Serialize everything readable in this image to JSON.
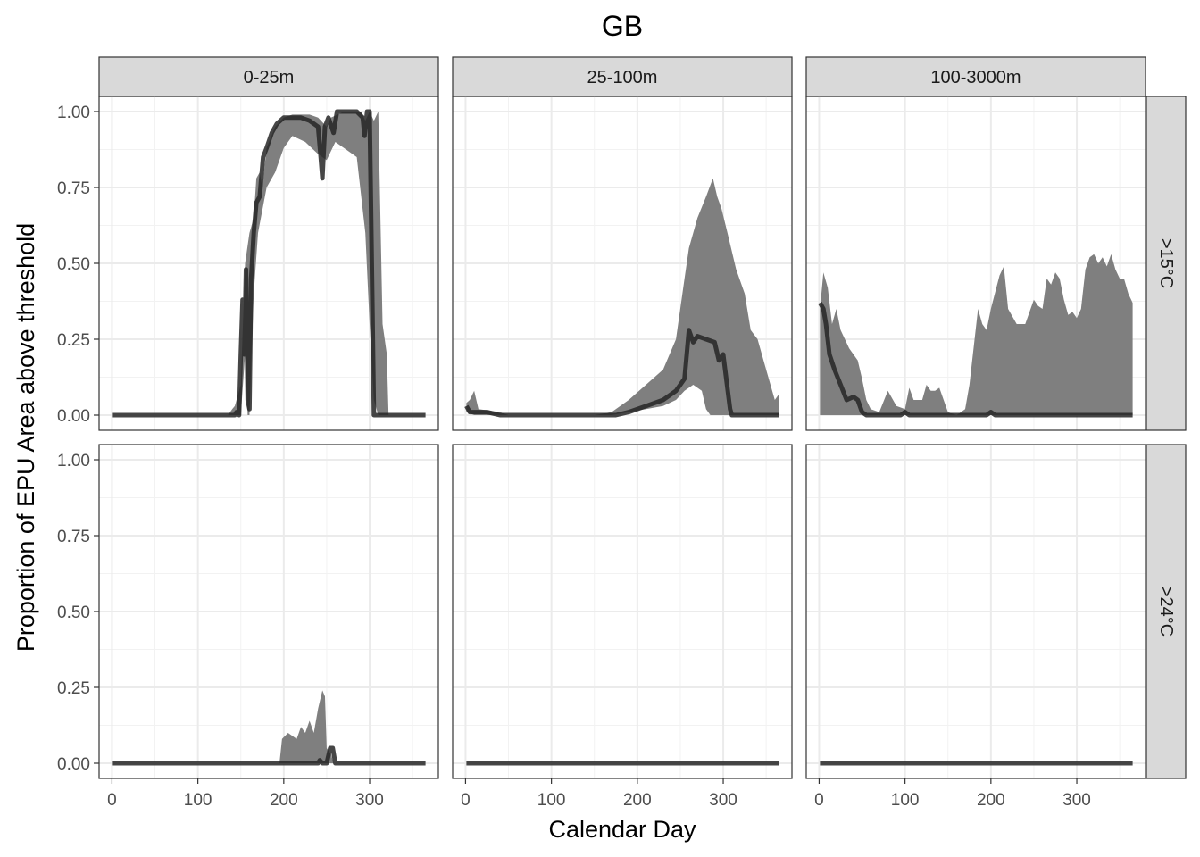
{
  "chart_data": {
    "type": "area",
    "title": "GB",
    "xlabel": "Calendar Day",
    "ylabel": "Proportion of EPU Area above threshold",
    "xlim": [
      -15,
      380
    ],
    "ylim": [
      -0.05,
      1.05
    ],
    "xticks": [
      0,
      100,
      200,
      300
    ],
    "yticks": [
      0,
      0.25,
      0.5,
      0.75,
      1
    ],
    "ytick_labels": [
      "0.00",
      "0.25",
      "0.50",
      "0.75",
      "1.00"
    ],
    "xtick_labels": [
      "0",
      "100",
      "200",
      "300"
    ],
    "grid": true,
    "column_facets": [
      "0-25m",
      "25-100m",
      "100-3000m"
    ],
    "row_facets": [
      ">15°C",
      ">24°C"
    ],
    "panels": [
      {
        "col": 0,
        "row": 0,
        "band_upper": [
          [
            1,
            0
          ],
          [
            135,
            0
          ],
          [
            140,
            0.02
          ],
          [
            143,
            0.03
          ],
          [
            150,
            0.1
          ],
          [
            155,
            0.5
          ],
          [
            160,
            0.6
          ],
          [
            165,
            0.65
          ],
          [
            168,
            0.78
          ],
          [
            172,
            0.8
          ],
          [
            175,
            0.75
          ],
          [
            180,
            0.88
          ],
          [
            190,
            0.95
          ],
          [
            200,
            0.98
          ],
          [
            210,
            0.99
          ],
          [
            230,
            0.99
          ],
          [
            240,
            0.98
          ],
          [
            250,
            0.95
          ],
          [
            255,
            0.98
          ],
          [
            270,
            1.0
          ],
          [
            290,
            1.0
          ],
          [
            295,
            0.97
          ],
          [
            300,
            1.0
          ],
          [
            305,
            0.97
          ],
          [
            310,
            1.0
          ],
          [
            315,
            0.3
          ],
          [
            320,
            0.2
          ],
          [
            322,
            0
          ],
          [
            365,
            0
          ]
        ],
        "band_lower": [
          [
            1,
            0
          ],
          [
            140,
            0
          ],
          [
            150,
            0
          ],
          [
            155,
            0.2
          ],
          [
            158,
            0
          ],
          [
            160,
            0
          ],
          [
            165,
            0.4
          ],
          [
            170,
            0.6
          ],
          [
            180,
            0.75
          ],
          [
            190,
            0.8
          ],
          [
            200,
            0.88
          ],
          [
            210,
            0.92
          ],
          [
            225,
            0.9
          ],
          [
            240,
            0.86
          ],
          [
            250,
            0.84
          ],
          [
            260,
            0.9
          ],
          [
            270,
            0.88
          ],
          [
            285,
            0.85
          ],
          [
            295,
            0.6
          ],
          [
            300,
            0.3
          ],
          [
            305,
            0.05
          ],
          [
            310,
            0
          ],
          [
            365,
            0
          ]
        ],
        "median": [
          [
            1,
            0
          ],
          [
            143,
            0
          ],
          [
            145,
            0.01
          ],
          [
            148,
            0
          ],
          [
            150,
            0.2
          ],
          [
            152,
            0.38
          ],
          [
            154,
            0.2
          ],
          [
            156,
            0.48
          ],
          [
            158,
            0.05
          ],
          [
            160,
            0.02
          ],
          [
            162,
            0.45
          ],
          [
            165,
            0.6
          ],
          [
            168,
            0.7
          ],
          [
            172,
            0.72
          ],
          [
            176,
            0.85
          ],
          [
            180,
            0.88
          ],
          [
            186,
            0.93
          ],
          [
            192,
            0.96
          ],
          [
            200,
            0.98
          ],
          [
            220,
            0.98
          ],
          [
            230,
            0.97
          ],
          [
            240,
            0.95
          ],
          [
            243,
            0.85
          ],
          [
            245,
            0.78
          ],
          [
            248,
            0.95
          ],
          [
            252,
            0.98
          ],
          [
            258,
            0.93
          ],
          [
            262,
            1.0
          ],
          [
            285,
            1.0
          ],
          [
            292,
            0.98
          ],
          [
            294,
            0.92
          ],
          [
            297,
            1.0
          ],
          [
            300,
            1.0
          ],
          [
            303,
            0.4
          ],
          [
            305,
            0
          ],
          [
            365,
            0
          ]
        ]
      },
      {
        "col": 1,
        "row": 0,
        "band_upper": [
          [
            1,
            0.04
          ],
          [
            5,
            0.05
          ],
          [
            10,
            0.08
          ],
          [
            15,
            0.02
          ],
          [
            40,
            0.01
          ],
          [
            50,
            0
          ],
          [
            150,
            0
          ],
          [
            170,
            0.01
          ],
          [
            190,
            0.05
          ],
          [
            210,
            0.1
          ],
          [
            230,
            0.15
          ],
          [
            245,
            0.25
          ],
          [
            255,
            0.45
          ],
          [
            260,
            0.55
          ],
          [
            270,
            0.65
          ],
          [
            280,
            0.72
          ],
          [
            288,
            0.78
          ],
          [
            293,
            0.72
          ],
          [
            298,
            0.68
          ],
          [
            305,
            0.6
          ],
          [
            315,
            0.48
          ],
          [
            325,
            0.4
          ],
          [
            332,
            0.28
          ],
          [
            340,
            0.25
          ],
          [
            350,
            0.15
          ],
          [
            360,
            0.05
          ],
          [
            365,
            0.07
          ]
        ],
        "band_lower": [
          [
            1,
            0.01
          ],
          [
            10,
            0
          ],
          [
            150,
            0
          ],
          [
            170,
            0
          ],
          [
            190,
            0.01
          ],
          [
            210,
            0.02
          ],
          [
            230,
            0.03
          ],
          [
            245,
            0.05
          ],
          [
            255,
            0.08
          ],
          [
            265,
            0.1
          ],
          [
            275,
            0.08
          ],
          [
            280,
            0.02
          ],
          [
            285,
            0
          ],
          [
            365,
            0
          ]
        ],
        "median": [
          [
            1,
            0.03
          ],
          [
            5,
            0.01
          ],
          [
            15,
            0.01
          ],
          [
            25,
            0.01
          ],
          [
            40,
            0
          ],
          [
            175,
            0
          ],
          [
            190,
            0.01
          ],
          [
            210,
            0.03
          ],
          [
            230,
            0.05
          ],
          [
            245,
            0.08
          ],
          [
            255,
            0.12
          ],
          [
            260,
            0.28
          ],
          [
            265,
            0.24
          ],
          [
            270,
            0.26
          ],
          [
            280,
            0.25
          ],
          [
            290,
            0.24
          ],
          [
            295,
            0.18
          ],
          [
            300,
            0.2
          ],
          [
            308,
            0.02
          ],
          [
            310,
            0
          ],
          [
            365,
            0
          ]
        ]
      },
      {
        "col": 2,
        "row": 0,
        "band_upper": [
          [
            1,
            0.35
          ],
          [
            5,
            0.47
          ],
          [
            10,
            0.42
          ],
          [
            15,
            0.3
          ],
          [
            20,
            0.35
          ],
          [
            25,
            0.28
          ],
          [
            30,
            0.25
          ],
          [
            35,
            0.22
          ],
          [
            40,
            0.2
          ],
          [
            45,
            0.18
          ],
          [
            50,
            0.12
          ],
          [
            55,
            0.05
          ],
          [
            60,
            0.02
          ],
          [
            70,
            0.01
          ],
          [
            80,
            0.08
          ],
          [
            90,
            0.03
          ],
          [
            100,
            0.02
          ],
          [
            105,
            0.09
          ],
          [
            110,
            0.05
          ],
          [
            120,
            0.05
          ],
          [
            125,
            0.1
          ],
          [
            130,
            0.08
          ],
          [
            135,
            0.08
          ],
          [
            140,
            0.09
          ],
          [
            145,
            0.05
          ],
          [
            150,
            0.01
          ],
          [
            160,
            0
          ],
          [
            170,
            0.02
          ],
          [
            175,
            0.1
          ],
          [
            185,
            0.35
          ],
          [
            190,
            0.3
          ],
          [
            195,
            0.28
          ],
          [
            200,
            0.35
          ],
          [
            210,
            0.46
          ],
          [
            215,
            0.49
          ],
          [
            220,
            0.35
          ],
          [
            230,
            0.3
          ],
          [
            240,
            0.3
          ],
          [
            250,
            0.38
          ],
          [
            255,
            0.36
          ],
          [
            260,
            0.35
          ],
          [
            265,
            0.45
          ],
          [
            270,
            0.43
          ],
          [
            275,
            0.47
          ],
          [
            280,
            0.45
          ],
          [
            285,
            0.38
          ],
          [
            290,
            0.33
          ],
          [
            295,
            0.34
          ],
          [
            300,
            0.32
          ],
          [
            305,
            0.35
          ],
          [
            310,
            0.48
          ],
          [
            315,
            0.52
          ],
          [
            320,
            0.53
          ],
          [
            325,
            0.5
          ],
          [
            330,
            0.52
          ],
          [
            335,
            0.49
          ],
          [
            340,
            0.53
          ],
          [
            345,
            0.48
          ],
          [
            350,
            0.45
          ],
          [
            355,
            0.45
          ],
          [
            360,
            0.4
          ],
          [
            365,
            0.37
          ]
        ],
        "band_lower": [
          [
            1,
            0
          ],
          [
            365,
            0
          ]
        ],
        "median": [
          [
            1,
            0.37
          ],
          [
            5,
            0.35
          ],
          [
            8,
            0.3
          ],
          [
            12,
            0.2
          ],
          [
            18,
            0.15
          ],
          [
            25,
            0.1
          ],
          [
            32,
            0.05
          ],
          [
            40,
            0.06
          ],
          [
            45,
            0.05
          ],
          [
            50,
            0.01
          ],
          [
            55,
            0
          ],
          [
            95,
            0
          ],
          [
            100,
            0.01
          ],
          [
            105,
            0
          ],
          [
            195,
            0
          ],
          [
            200,
            0.01
          ],
          [
            205,
            0
          ],
          [
            365,
            0
          ]
        ]
      },
      {
        "col": 0,
        "row": 1,
        "band_upper": [
          [
            195,
            0
          ],
          [
            198,
            0.08
          ],
          [
            205,
            0.1
          ],
          [
            215,
            0.08
          ],
          [
            220,
            0.12
          ],
          [
            225,
            0.1
          ],
          [
            230,
            0.14
          ],
          [
            235,
            0.1
          ],
          [
            240,
            0.18
          ],
          [
            245,
            0.24
          ],
          [
            248,
            0.22
          ],
          [
            250,
            0.05
          ],
          [
            255,
            0.03
          ],
          [
            258,
            0
          ],
          [
            265,
            0
          ]
        ],
        "band_lower": [
          [
            195,
            0
          ],
          [
            265,
            0
          ]
        ],
        "median": [
          [
            1,
            0
          ],
          [
            240,
            0
          ],
          [
            242,
            0.01
          ],
          [
            245,
            0
          ],
          [
            250,
            0
          ],
          [
            254,
            0.05
          ],
          [
            257,
            0.05
          ],
          [
            260,
            0
          ],
          [
            365,
            0
          ]
        ]
      },
      {
        "col": 1,
        "row": 1,
        "band_upper": [],
        "band_lower": [],
        "median": [
          [
            1,
            0
          ],
          [
            365,
            0
          ]
        ]
      },
      {
        "col": 2,
        "row": 1,
        "band_upper": [],
        "band_lower": [],
        "median": [
          [
            1,
            0
          ],
          [
            365,
            0
          ]
        ]
      }
    ]
  }
}
